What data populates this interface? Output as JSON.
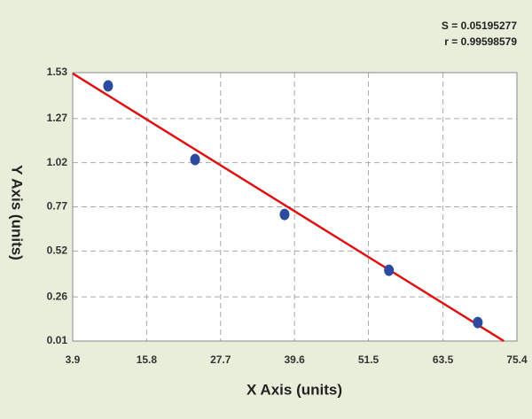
{
  "chart_data": {
    "type": "scatter",
    "annotations": [
      "S = 0.05195277",
      "r = 0.99598579"
    ],
    "x_label": "X Axis (units)",
    "y_label": "Y Axis (units)",
    "x": [
      9.6,
      23.6,
      38.0,
      54.8,
      69.1
    ],
    "values": [
      1.455,
      1.038,
      0.727,
      0.411,
      0.115
    ],
    "color": "#2b4aa0",
    "fit_line": {
      "x": [
        3.9,
        73.3
      ],
      "y": [
        1.525,
        0.01
      ],
      "color": "#e01010"
    },
    "xlim": [
      3.9,
      75.4
    ],
    "xticks": [
      3.9,
      15.8,
      27.7,
      39.6,
      51.5,
      63.5,
      75.4
    ],
    "ylim": [
      0.01,
      1.53
    ],
    "yticks": [
      0.01,
      0.26,
      0.52,
      0.77,
      1.02,
      1.27,
      1.53
    ],
    "grid": true
  }
}
